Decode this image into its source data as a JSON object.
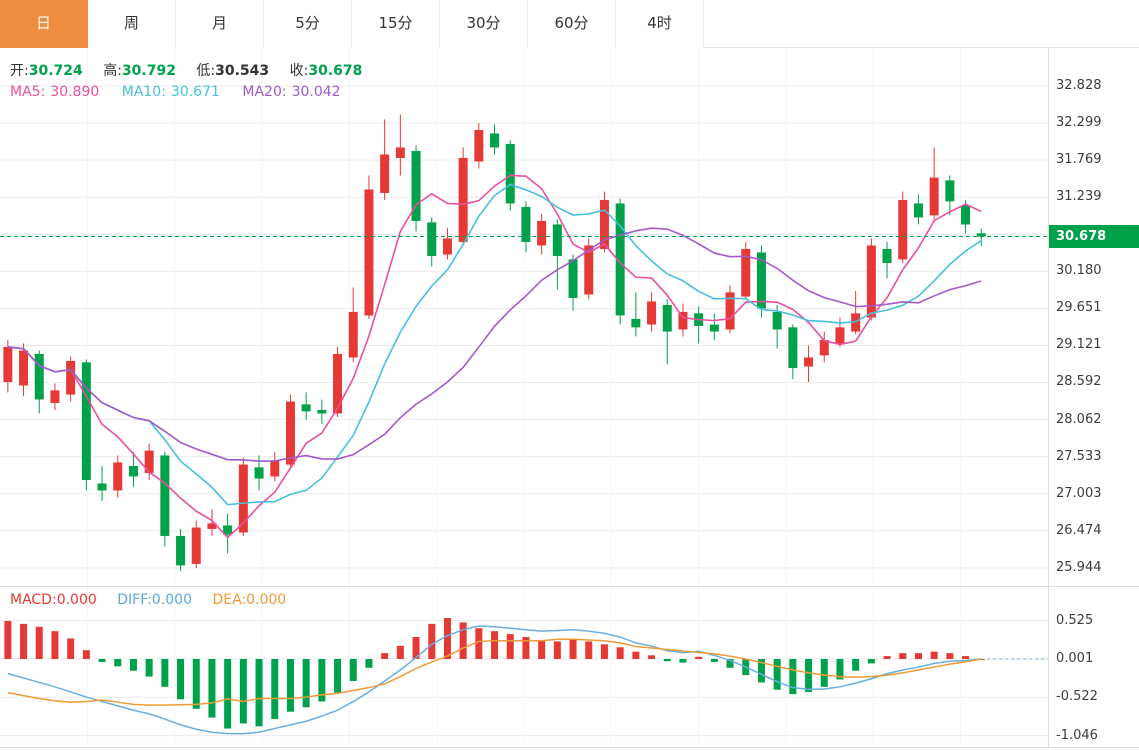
{
  "tabs": [
    {
      "label": "日",
      "active": true
    },
    {
      "label": "周",
      "active": false
    },
    {
      "label": "月",
      "active": false
    },
    {
      "label": "5分",
      "active": false
    },
    {
      "label": "15分",
      "active": false
    },
    {
      "label": "30分",
      "active": false
    },
    {
      "label": "60分",
      "active": false
    },
    {
      "label": "4时",
      "active": false
    }
  ],
  "ohlc_legend": {
    "open_label": "开:",
    "open": "30.724",
    "high_label": "高:",
    "high": "30.792",
    "low_label": "低:",
    "low": "30.543",
    "close_label": "收:",
    "close": "30.678"
  },
  "ma_legend": {
    "ma5_label": "MA5:",
    "ma5": "30.890",
    "ma10_label": "MA10:",
    "ma10": "30.671",
    "ma20_label": "MA20:",
    "ma20": "30.042"
  },
  "macd_legend": {
    "macd_label": "MACD:",
    "macd": "0.000",
    "diff_label": "DIFF:",
    "diff": "0.000",
    "dea_label": "DEA:",
    "dea": "0.000"
  },
  "price_axis_ticks": [
    "32.828",
    "32.299",
    "31.769",
    "31.239",
    "30.709",
    "30.180",
    "29.651",
    "29.121",
    "28.592",
    "28.062",
    "27.533",
    "27.003",
    "26.474",
    "25.944"
  ],
  "macd_axis_ticks": [
    "0.525",
    "0.001",
    "-0.522",
    "-1.046"
  ],
  "price_tag": "30.678",
  "colors": {
    "up": "#e53935",
    "down": "#00a14b",
    "ma5": "#e9509e",
    "ma10": "#45c1dd",
    "ma20": "#a459c9",
    "diff": "#6aaede",
    "dea": "#f09a37",
    "tab_accent": "#f08c3e",
    "tag_bg": "#00a14b"
  },
  "chart_data": [
    {
      "type": "candlestick",
      "title": "Daily price chart with MA5/MA10/MA20 overlays",
      "ylim": [
        25.944,
        32.828
      ],
      "y_ticks": [
        32.828,
        32.299,
        31.769,
        31.239,
        30.709,
        30.18,
        29.651,
        29.121,
        28.592,
        28.062,
        27.533,
        27.003,
        26.474,
        25.944
      ],
      "current_price": 30.678,
      "legend": [
        "MA5 30.890",
        "MA10 30.671",
        "MA20 30.042"
      ],
      "candles_format": "open,close,high,low",
      "candles": [
        [
          28.6,
          29.1,
          29.2,
          28.45
        ],
        [
          28.55,
          29.05,
          29.15,
          28.4
        ],
        [
          29.0,
          28.35,
          29.05,
          28.15
        ],
        [
          28.3,
          28.48,
          28.58,
          28.2
        ],
        [
          28.42,
          28.9,
          28.96,
          28.32
        ],
        [
          28.88,
          27.2,
          28.92,
          27.05
        ],
        [
          27.15,
          27.05,
          27.4,
          26.9
        ],
        [
          27.05,
          27.45,
          27.55,
          26.95
        ],
        [
          27.4,
          27.25,
          27.6,
          27.1
        ],
        [
          27.3,
          27.62,
          27.72,
          27.2
        ],
        [
          27.55,
          26.4,
          27.6,
          26.25
        ],
        [
          26.4,
          25.98,
          26.5,
          25.9
        ],
        [
          26.0,
          26.52,
          26.62,
          25.94
        ],
        [
          26.5,
          26.58,
          26.78,
          26.4
        ],
        [
          26.55,
          26.42,
          26.72,
          26.15
        ],
        [
          26.45,
          27.42,
          27.52,
          26.4
        ],
        [
          27.38,
          27.22,
          27.55,
          27.05
        ],
        [
          27.25,
          27.48,
          27.6,
          27.18
        ],
        [
          27.42,
          28.32,
          28.42,
          27.38
        ],
        [
          28.28,
          28.18,
          28.45,
          28.06
        ],
        [
          28.2,
          28.15,
          28.35,
          28.0
        ],
        [
          28.15,
          29.0,
          29.1,
          28.1
        ],
        [
          28.95,
          29.6,
          29.95,
          28.88
        ],
        [
          29.55,
          31.35,
          31.55,
          29.5
        ],
        [
          31.3,
          31.85,
          32.35,
          31.2
        ],
        [
          31.8,
          31.95,
          32.42,
          31.55
        ],
        [
          31.9,
          30.9,
          31.98,
          30.75
        ],
        [
          30.88,
          30.4,
          30.95,
          30.25
        ],
        [
          30.42,
          30.65,
          30.8,
          30.35
        ],
        [
          30.6,
          31.8,
          31.95,
          30.55
        ],
        [
          31.75,
          32.2,
          32.3,
          31.65
        ],
        [
          32.15,
          31.95,
          32.28,
          31.85
        ],
        [
          32.0,
          31.15,
          32.05,
          31.05
        ],
        [
          31.1,
          30.6,
          31.18,
          30.45
        ],
        [
          30.55,
          30.9,
          31.0,
          30.42
        ],
        [
          30.85,
          30.4,
          30.92,
          29.92
        ],
        [
          30.35,
          29.8,
          30.42,
          29.62
        ],
        [
          29.85,
          30.55,
          30.65,
          29.78
        ],
        [
          30.5,
          31.2,
          31.32,
          30.45
        ],
        [
          31.15,
          29.55,
          31.22,
          29.42
        ],
        [
          29.5,
          29.38,
          29.88,
          29.25
        ],
        [
          29.42,
          29.75,
          29.88,
          29.32
        ],
        [
          29.7,
          29.32,
          29.78,
          28.85
        ],
        [
          29.35,
          29.6,
          29.72,
          29.25
        ],
        [
          29.58,
          29.4,
          29.68,
          29.15
        ],
        [
          29.42,
          29.32,
          29.58,
          29.2
        ],
        [
          29.35,
          29.88,
          29.98,
          29.3
        ],
        [
          29.82,
          30.5,
          30.6,
          29.78
        ],
        [
          30.45,
          29.65,
          30.55,
          29.52
        ],
        [
          29.6,
          29.35,
          29.7,
          29.08
        ],
        [
          29.38,
          28.8,
          29.42,
          28.64
        ],
        [
          28.82,
          28.95,
          29.12,
          28.6
        ],
        [
          28.98,
          29.2,
          29.32,
          28.88
        ],
        [
          29.15,
          29.38,
          29.52,
          29.1
        ],
        [
          29.32,
          29.58,
          29.9,
          29.28
        ],
        [
          29.52,
          30.55,
          30.65,
          29.48
        ],
        [
          30.5,
          30.3,
          30.6,
          30.08
        ],
        [
          30.35,
          31.2,
          31.32,
          30.3
        ],
        [
          31.15,
          30.95,
          31.28,
          30.85
        ],
        [
          30.98,
          31.52,
          31.95,
          30.92
        ],
        [
          31.48,
          31.18,
          31.55,
          30.98
        ],
        [
          31.12,
          30.85,
          31.2,
          30.72
        ],
        [
          30.724,
          30.678,
          30.792,
          30.543
        ]
      ]
    },
    {
      "type": "bar",
      "title": "MACD (bar = histogram, lines = DIFF/DEA)",
      "ylim": [
        -1.046,
        0.525
      ],
      "y_ticks": [
        0.525,
        0.001,
        -0.522,
        -1.046
      ],
      "hist": [
        0.52,
        0.48,
        0.44,
        0.38,
        0.28,
        0.12,
        -0.04,
        -0.1,
        -0.16,
        -0.24,
        -0.38,
        -0.55,
        -0.68,
        -0.8,
        -0.95,
        -0.88,
        -0.92,
        -0.82,
        -0.72,
        -0.66,
        -0.58,
        -0.46,
        -0.3,
        -0.12,
        0.08,
        0.18,
        0.3,
        0.48,
        0.56,
        0.5,
        0.42,
        0.38,
        0.34,
        0.3,
        0.26,
        0.24,
        0.26,
        0.24,
        0.2,
        0.16,
        0.1,
        0.05,
        -0.03,
        -0.05,
        0.03,
        -0.04,
        -0.12,
        -0.22,
        -0.32,
        -0.42,
        -0.48,
        -0.45,
        -0.38,
        -0.28,
        -0.16,
        -0.06,
        0.04,
        0.08,
        0.08,
        0.1,
        0.08,
        0.04,
        0.0
      ],
      "diff": [
        -0.2,
        -0.26,
        -0.32,
        -0.38,
        -0.45,
        -0.52,
        -0.58,
        -0.64,
        -0.7,
        -0.75,
        -0.82,
        -0.9,
        -0.96,
        -1.0,
        -1.02,
        -1.02,
        -1.0,
        -0.95,
        -0.9,
        -0.85,
        -0.78,
        -0.7,
        -0.58,
        -0.45,
        -0.3,
        -0.15,
        0.02,
        0.2,
        0.32,
        0.4,
        0.45,
        0.44,
        0.42,
        0.4,
        0.38,
        0.39,
        0.4,
        0.38,
        0.35,
        0.3,
        0.22,
        0.175,
        0.115,
        0.085,
        0.105,
        0.05,
        -0.02,
        -0.11,
        -0.21,
        -0.31,
        -0.39,
        -0.415,
        -0.41,
        -0.38,
        -0.33,
        -0.27,
        -0.2,
        -0.15,
        -0.11,
        -0.06,
        -0.03,
        -0.02,
        0.0
      ],
      "dea": [
        -0.46,
        -0.5,
        -0.54,
        -0.57,
        -0.59,
        -0.58,
        -0.56,
        -0.59,
        -0.62,
        -0.63,
        -0.63,
        -0.625,
        -0.62,
        -0.6,
        -0.545,
        -0.58,
        -0.54,
        -0.54,
        -0.54,
        -0.52,
        -0.49,
        -0.47,
        -0.43,
        -0.39,
        -0.34,
        -0.24,
        -0.13,
        -0.04,
        0.04,
        0.15,
        0.24,
        0.25,
        0.25,
        0.25,
        0.25,
        0.27,
        0.27,
        0.26,
        0.25,
        0.22,
        0.17,
        0.15,
        0.13,
        0.11,
        0.09,
        0.07,
        0.04,
        0.0,
        -0.05,
        -0.1,
        -0.15,
        -0.19,
        -0.22,
        -0.24,
        -0.25,
        -0.24,
        -0.22,
        -0.19,
        -0.15,
        -0.11,
        -0.07,
        -0.04,
        0.0
      ]
    }
  ]
}
